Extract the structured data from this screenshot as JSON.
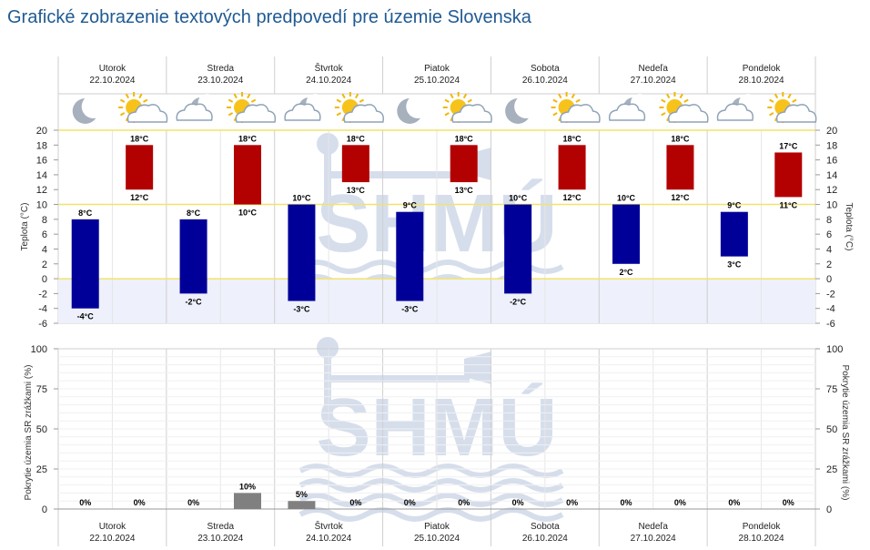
{
  "title": "Grafické zobrazenie textových predpovedí pre územie Slovenska",
  "days": [
    {
      "name": "Utorok",
      "date": "22.10.2024",
      "night_icon": "moon-icon",
      "day_icon": "sun-cloud-icon"
    },
    {
      "name": "Streda",
      "date": "23.10.2024",
      "night_icon": "cloud-moon-icon",
      "day_icon": "sun-cloud-icon"
    },
    {
      "name": "Štvrtok",
      "date": "24.10.2024",
      "night_icon": "cloud-moon-icon",
      "day_icon": "sun-cloud-icon"
    },
    {
      "name": "Piatok",
      "date": "25.10.2024",
      "night_icon": "moon-icon",
      "day_icon": "sun-cloud-icon"
    },
    {
      "name": "Sobota",
      "date": "26.10.2024",
      "night_icon": "moon-icon",
      "day_icon": "sun-cloud-icon"
    },
    {
      "name": "Nedeľa",
      "date": "27.10.2024",
      "night_icon": "cloud-moon-icon",
      "day_icon": "sun-cloud-icon"
    },
    {
      "name": "Pondelok",
      "date": "28.10.2024",
      "night_icon": "cloud-moon-icon",
      "day_icon": "sun-cloud-icon"
    }
  ],
  "colors": {
    "night_bar": "#000099",
    "day_bar": "#b30000",
    "precip_bar": "#808080",
    "title": "#1f5a93",
    "reference_line": "#f2e36b",
    "below_zero_fill": "#eef0fb",
    "watermark": "#d6deec"
  },
  "watermark_text": "SHMÚ",
  "chart_data": [
    {
      "type": "bar",
      "ylabel": "Teplota (°C)",
      "ylim": [
        -6,
        20
      ],
      "yticks": [
        20,
        18,
        16,
        14,
        12,
        10,
        8,
        6,
        4,
        2,
        0,
        -2,
        -4,
        -6
      ],
      "reference_lines": [
        20,
        10,
        0
      ],
      "night_ranges": [
        [
          -4,
          8
        ],
        [
          -2,
          8
        ],
        [
          -3,
          10
        ],
        [
          -3,
          9
        ],
        [
          -2,
          10
        ],
        [
          2,
          10
        ],
        [
          3,
          9
        ]
      ],
      "day_ranges": [
        [
          12,
          18
        ],
        [
          10,
          18
        ],
        [
          13,
          18
        ],
        [
          13,
          18
        ],
        [
          12,
          18
        ],
        [
          12,
          18
        ],
        [
          11,
          17
        ]
      ],
      "unit": "°C"
    },
    {
      "type": "bar",
      "ylabel": "Pokrytie územia SR zrážkami (%)",
      "ylim": [
        0,
        100
      ],
      "yticks": [
        100,
        75,
        50,
        25,
        0
      ],
      "night_values": [
        0,
        0,
        5,
        0,
        0,
        0,
        0
      ],
      "day_values": [
        0,
        10,
        0,
        0,
        0,
        0,
        0
      ],
      "unit": "%"
    }
  ]
}
